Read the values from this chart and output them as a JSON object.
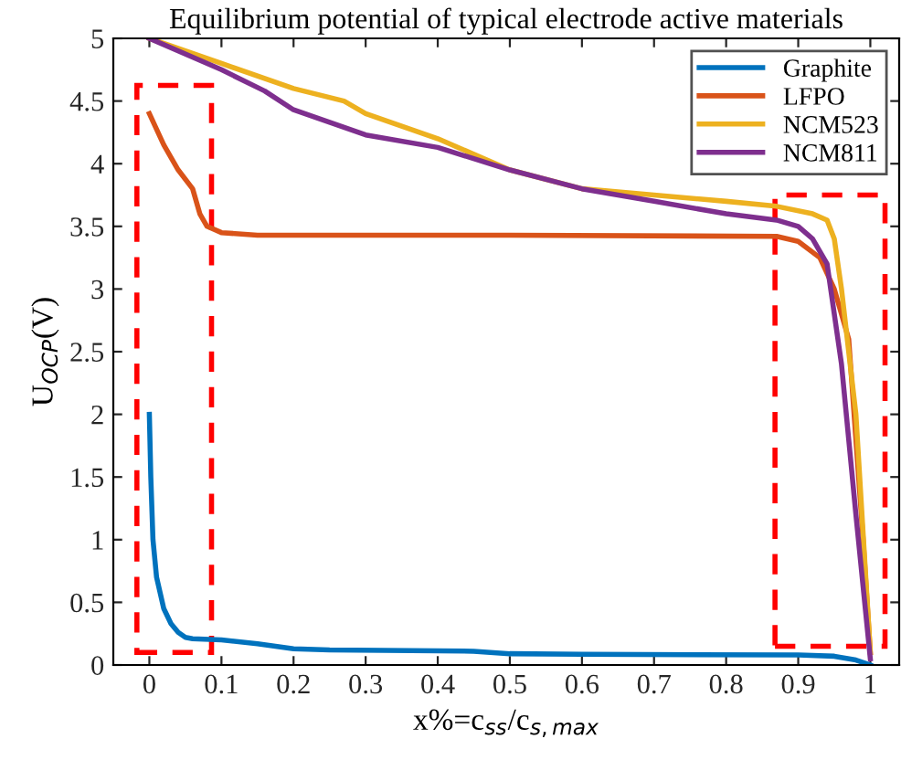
{
  "chart_data": {
    "type": "line",
    "title": "Equilibrium potential of typical electrode active materials",
    "xlabel": "x%=c$_{ss}$/c$_{s,max}$",
    "ylabel": "U$_{OCP}$(V)",
    "xlim": [
      -0.05,
      1.04
    ],
    "ylim": [
      0,
      5
    ],
    "xticks": [
      0,
      0.1,
      0.2,
      0.3,
      0.4,
      0.5,
      0.6,
      0.7,
      0.8,
      0.9,
      1
    ],
    "yticks": [
      0,
      0.5,
      1,
      1.5,
      2,
      2.5,
      3,
      3.5,
      4,
      4.5,
      5
    ],
    "grid": false,
    "legend": "top right",
    "line_style": "solid",
    "series": [
      {
        "name": "Graphite",
        "color": "#0072bd",
        "x": [
          0,
          0.002,
          0.005,
          0.01,
          0.02,
          0.03,
          0.04,
          0.05,
          0.06,
          0.1,
          0.15,
          0.2,
          0.25,
          0.45,
          0.5,
          0.6,
          0.9,
          0.95,
          0.98,
          1.0
        ],
        "values": [
          2.0,
          1.5,
          1.0,
          0.7,
          0.45,
          0.33,
          0.26,
          0.22,
          0.21,
          0.2,
          0.17,
          0.13,
          0.12,
          0.11,
          0.09,
          0.085,
          0.08,
          0.07,
          0.04,
          0.0
        ]
      },
      {
        "name": "LFPO",
        "color": "#d95319",
        "x": [
          0,
          0.02,
          0.04,
          0.06,
          0.07,
          0.08,
          0.1,
          0.15,
          0.5,
          0.87,
          0.9,
          0.93,
          0.95,
          0.97,
          0.99,
          1.0
        ],
        "values": [
          4.4,
          4.15,
          3.95,
          3.8,
          3.6,
          3.5,
          3.45,
          3.43,
          3.43,
          3.42,
          3.38,
          3.25,
          3.0,
          2.6,
          1.0,
          0.1
        ]
      },
      {
        "name": "NCM523",
        "color": "#edb120",
        "x": [
          0,
          0.1,
          0.2,
          0.27,
          0.3,
          0.4,
          0.5,
          0.6,
          0.7,
          0.8,
          0.87,
          0.92,
          0.94,
          0.95,
          0.96,
          0.98,
          1.0
        ],
        "values": [
          5.0,
          4.8,
          4.6,
          4.5,
          4.4,
          4.2,
          3.95,
          3.8,
          3.75,
          3.7,
          3.66,
          3.6,
          3.55,
          3.4,
          3.0,
          2.0,
          0.1
        ]
      },
      {
        "name": "NCM811",
        "color": "#7e2f8e",
        "x": [
          0,
          0.1,
          0.16,
          0.2,
          0.25,
          0.3,
          0.4,
          0.5,
          0.6,
          0.7,
          0.8,
          0.87,
          0.9,
          0.92,
          0.94,
          0.96,
          0.98,
          1.0
        ],
        "values": [
          5.0,
          4.75,
          4.58,
          4.43,
          4.33,
          4.23,
          4.13,
          3.95,
          3.8,
          3.7,
          3.6,
          3.55,
          3.5,
          3.4,
          3.2,
          2.4,
          1.2,
          0.05
        ]
      }
    ]
  }
}
